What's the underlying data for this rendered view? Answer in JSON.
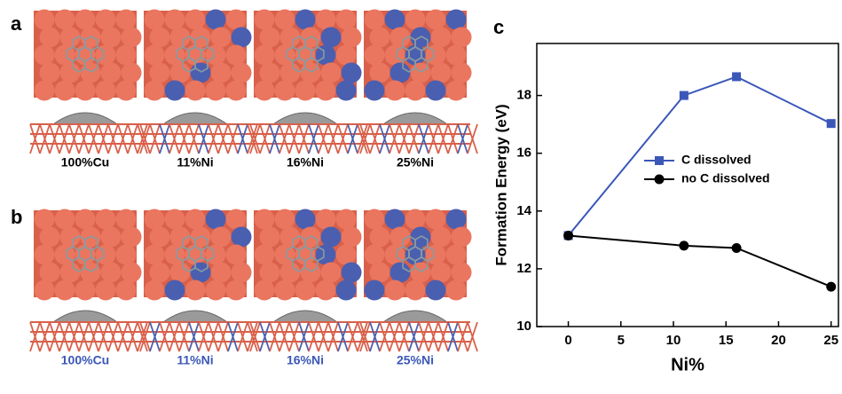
{
  "panels": {
    "a": {
      "letter": "a",
      "labels": [
        "100%Cu",
        "11%Ni",
        "16%Ni",
        "25%Ni"
      ]
    },
    "b": {
      "letter": "b",
      "labels": [
        "100%Cu",
        "11%Ni",
        "16%Ni",
        "25%Ni"
      ]
    }
  },
  "chart_data": {
    "type": "line",
    "letter": "c",
    "xlabel": "Ni%",
    "ylabel": "Formation Energy (eV)",
    "x": [
      0,
      11,
      16,
      25
    ],
    "series": [
      {
        "name": "C dissolved",
        "color": "#3b57b8",
        "marker": "square",
        "values": [
          13.15,
          18.0,
          18.65,
          17.03
        ]
      },
      {
        "name": "no C dissolved",
        "color": "#000000",
        "marker": "circle",
        "values": [
          13.15,
          12.8,
          12.72,
          11.38
        ]
      }
    ],
    "xlim": [
      -3,
      25.7
    ],
    "ylim": [
      10,
      19.8
    ],
    "xticks": [
      0,
      5,
      10,
      15,
      20,
      25
    ],
    "yticks": [
      10,
      12,
      14,
      16,
      18
    ]
  }
}
